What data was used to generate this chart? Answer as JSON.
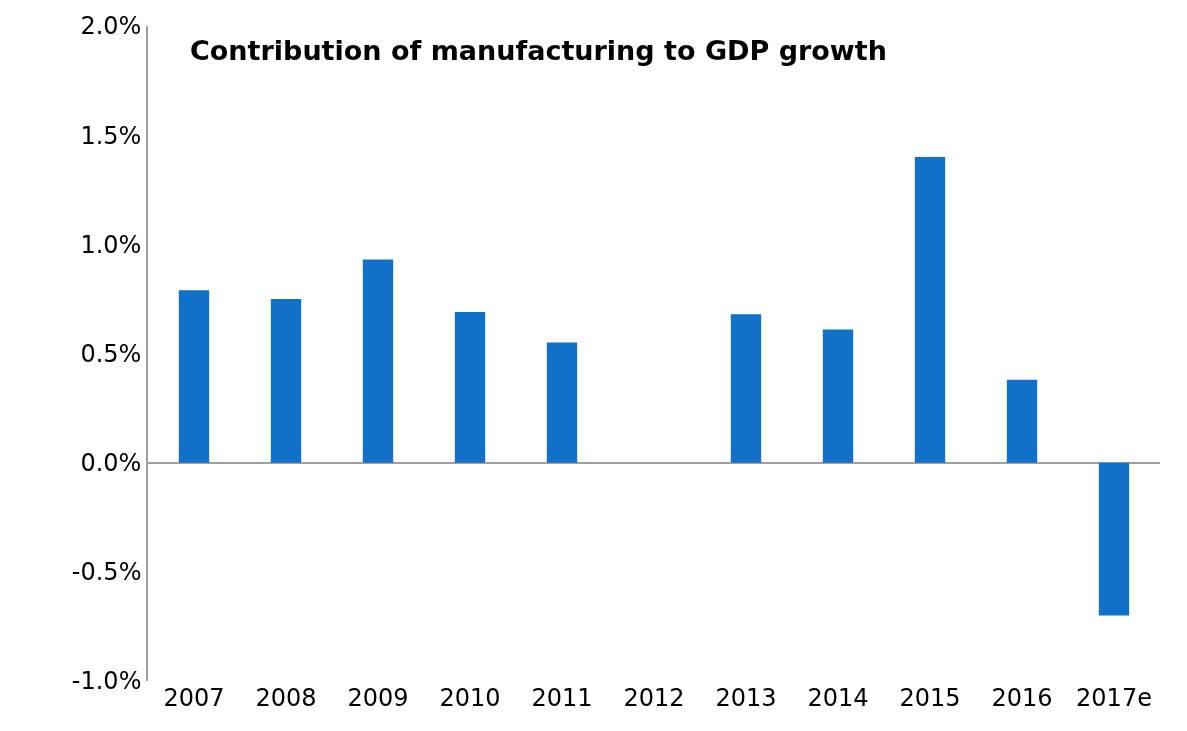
{
  "chart_data": {
    "type": "bar",
    "title": "Contribution of manufacturing to GDP growth",
    "categories": [
      "2007",
      "2008",
      "2009",
      "2010",
      "2011",
      "2012",
      "2013",
      "2014",
      "2015",
      "2016",
      "2017e"
    ],
    "values": [
      0.79,
      0.75,
      0.93,
      0.69,
      0.55,
      0,
      0.68,
      0.61,
      1.4,
      0.38,
      -0.7
    ],
    "color": "#1170c8",
    "ylim": [
      -1.0,
      2.0
    ],
    "yticks": [
      {
        "value": -1.0,
        "label": "-1.0%"
      },
      {
        "value": -0.5,
        "label": "-0.5%"
      },
      {
        "value": 0.0,
        "label": "0.0%"
      },
      {
        "value": 0.5,
        "label": "0.5%"
      },
      {
        "value": 1.0,
        "label": "1.0%"
      },
      {
        "value": 1.5,
        "label": "1.5%"
      },
      {
        "value": 2.0,
        "label": "2.0%"
      }
    ]
  }
}
